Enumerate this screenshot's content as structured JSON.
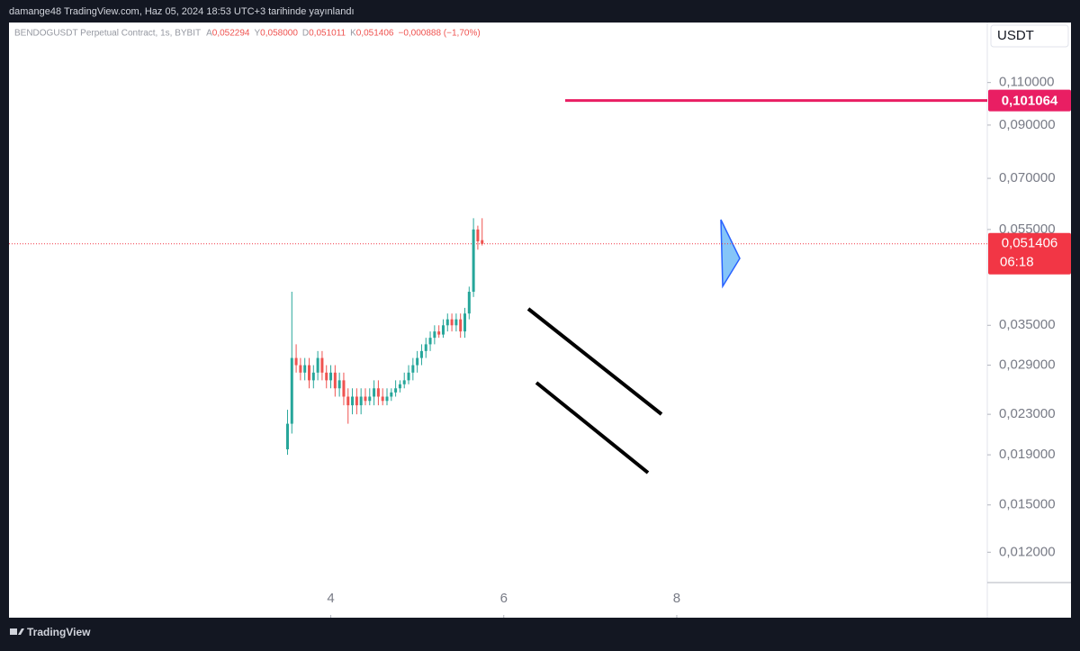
{
  "header": {
    "text": "damange48 TradingView.com, Haz 05, 2024 18:53 UTC+3 tarihinde yayınlandı"
  },
  "footer": {
    "brand": "TradingView"
  },
  "chart_data": {
    "type": "candlestick",
    "title": "BENDOGUSDT Perpetual Contract, 1s, BYBIT",
    "legend": [
      {
        "key": "A",
        "value": "0,052294"
      },
      {
        "key": "Y",
        "value": "0,058000"
      },
      {
        "key": "D",
        "value": "0,051011"
      },
      {
        "key": "K",
        "value": "0,051406"
      },
      {
        "key": "",
        "value": "−0,000888 (−1,70%)"
      }
    ],
    "currency": "USDT",
    "log_scale": true,
    "up_color": "#26a69a",
    "down_color": "#ef5350",
    "x": [
      3.5,
      3.55,
      3.6,
      3.65,
      3.7,
      3.75,
      3.8,
      3.85,
      3.9,
      3.95,
      4.0,
      4.05,
      4.1,
      4.15,
      4.2,
      4.25,
      4.3,
      4.35,
      4.4,
      4.45,
      4.5,
      4.55,
      4.6,
      4.65,
      4.7,
      4.75,
      4.8,
      4.85,
      4.9,
      4.95,
      5.0,
      5.05,
      5.1,
      5.15,
      5.2,
      5.25,
      5.3,
      5.35,
      5.4,
      5.45,
      5.5,
      5.55,
      5.6,
      5.65,
      5.7,
      5.75
    ],
    "open": [
      0.0195,
      0.022,
      0.03,
      0.029,
      0.028,
      0.029,
      0.027,
      0.028,
      0.03,
      0.028,
      0.027,
      0.028,
      0.026,
      0.027,
      0.025,
      0.024,
      0.025,
      0.024,
      0.025,
      0.0245,
      0.025,
      0.026,
      0.025,
      0.0245,
      0.025,
      0.0255,
      0.026,
      0.0265,
      0.027,
      0.028,
      0.029,
      0.03,
      0.031,
      0.032,
      0.033,
      0.034,
      0.0335,
      0.035,
      0.036,
      0.035,
      0.036,
      0.034,
      0.037,
      0.041,
      0.055,
      0.0523
    ],
    "high": [
      0.0235,
      0.041,
      0.032,
      0.03,
      0.03,
      0.03,
      0.029,
      0.031,
      0.031,
      0.029,
      0.029,
      0.029,
      0.028,
      0.028,
      0.026,
      0.026,
      0.026,
      0.026,
      0.026,
      0.026,
      0.027,
      0.027,
      0.026,
      0.026,
      0.026,
      0.027,
      0.027,
      0.028,
      0.029,
      0.03,
      0.031,
      0.032,
      0.033,
      0.034,
      0.035,
      0.035,
      0.036,
      0.037,
      0.037,
      0.037,
      0.037,
      0.038,
      0.042,
      0.058,
      0.056,
      0.058
    ],
    "low": [
      0.019,
      0.021,
      0.028,
      0.027,
      0.027,
      0.026,
      0.026,
      0.027,
      0.027,
      0.026,
      0.026,
      0.025,
      0.025,
      0.024,
      0.022,
      0.023,
      0.023,
      0.023,
      0.024,
      0.024,
      0.024,
      0.024,
      0.024,
      0.024,
      0.0245,
      0.025,
      0.0255,
      0.026,
      0.0265,
      0.027,
      0.028,
      0.029,
      0.03,
      0.031,
      0.032,
      0.033,
      0.033,
      0.034,
      0.034,
      0.034,
      0.033,
      0.033,
      0.036,
      0.04,
      0.05,
      0.051
    ],
    "close": [
      0.022,
      0.03,
      0.029,
      0.028,
      0.029,
      0.027,
      0.028,
      0.03,
      0.028,
      0.027,
      0.028,
      0.026,
      0.027,
      0.025,
      0.024,
      0.025,
      0.024,
      0.025,
      0.0245,
      0.025,
      0.026,
      0.025,
      0.0245,
      0.025,
      0.0255,
      0.026,
      0.0265,
      0.027,
      0.028,
      0.029,
      0.03,
      0.031,
      0.032,
      0.033,
      0.034,
      0.0335,
      0.035,
      0.036,
      0.035,
      0.036,
      0.034,
      0.037,
      0.041,
      0.055,
      0.052,
      0.0514
    ],
    "xlim": [
      0.28,
      11.59
    ],
    "xticks": [
      4,
      6,
      8
    ],
    "ylim": [
      0.0104,
      0.146
    ],
    "yticks": [
      {
        "value": 0.012,
        "label": "0,012000"
      },
      {
        "value": 0.015,
        "label": "0,015000"
      },
      {
        "value": 0.019,
        "label": "0,019000"
      },
      {
        "value": 0.023,
        "label": "0,023000"
      },
      {
        "value": 0.029,
        "label": "0,029000"
      },
      {
        "value": 0.035,
        "label": "0,035000"
      },
      {
        "value": 0.055,
        "label": "0,055000"
      },
      {
        "value": 0.07,
        "label": "0,070000"
      },
      {
        "value": 0.09,
        "label": "0,090000"
      },
      {
        "value": 0.11,
        "label": "0,110000"
      }
    ],
    "price_line": {
      "value": 0.101064,
      "label": "0,101064",
      "color": "#e91e63"
    },
    "last_price": {
      "value": 0.051406,
      "label": "0,051406",
      "countdown": "06:18",
      "color": "#f23645"
    }
  }
}
